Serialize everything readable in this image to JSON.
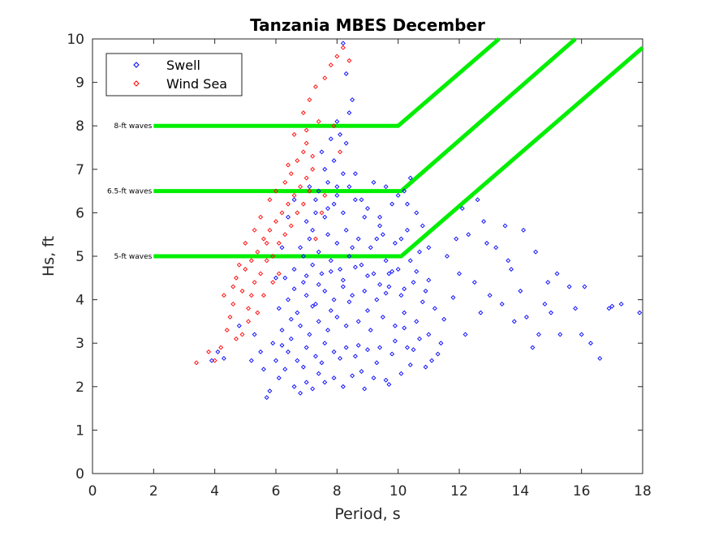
{
  "chart_data": {
    "type": "scatter",
    "title": "Tanzania MBES December",
    "xlabel": "Period, s",
    "ylabel": "Hs, ft",
    "xlim": [
      0,
      18
    ],
    "ylim": [
      0,
      10
    ],
    "xticks": [
      "0",
      "2",
      "4",
      "6",
      "8",
      "10",
      "12",
      "14",
      "16",
      "18"
    ],
    "yticks": [
      "0",
      "1",
      "2",
      "3",
      "4",
      "5",
      "6",
      "7",
      "8",
      "9",
      "10"
    ],
    "grid": false,
    "legend_position": "top-left",
    "series": [
      {
        "name": "Swell",
        "marker": "diamond",
        "color": "#0000ff",
        "points": [
          [
            5.7,
            1.75
          ],
          [
            5.8,
            1.9
          ],
          [
            6.1,
            2.2
          ],
          [
            6.3,
            2.4
          ],
          [
            6.6,
            2.0
          ],
          [
            6.8,
            1.85
          ],
          [
            7.0,
            2.1
          ],
          [
            7.2,
            1.95
          ],
          [
            7.4,
            2.3
          ],
          [
            7.6,
            2.1
          ],
          [
            7.9,
            2.2
          ],
          [
            8.2,
            2.0
          ],
          [
            8.5,
            2.25
          ],
          [
            8.8,
            2.35
          ],
          [
            9.2,
            2.2
          ],
          [
            9.6,
            2.15
          ],
          [
            10.1,
            2.3
          ],
          [
            10.4,
            2.5
          ],
          [
            6.0,
            2.6
          ],
          [
            6.4,
            2.8
          ],
          [
            6.7,
            2.6
          ],
          [
            7.0,
            2.9
          ],
          [
            7.3,
            2.7
          ],
          [
            7.6,
            3.0
          ],
          [
            7.9,
            2.8
          ],
          [
            8.3,
            2.9
          ],
          [
            8.6,
            2.7
          ],
          [
            9.0,
            2.85
          ],
          [
            9.4,
            2.9
          ],
          [
            9.8,
            2.75
          ],
          [
            10.3,
            2.9
          ],
          [
            10.7,
            3.1
          ],
          [
            11.0,
            3.2
          ],
          [
            5.9,
            3.0
          ],
          [
            6.2,
            3.3
          ],
          [
            6.5,
            3.1
          ],
          [
            6.8,
            3.4
          ],
          [
            7.1,
            3.2
          ],
          [
            7.4,
            3.5
          ],
          [
            7.7,
            3.3
          ],
          [
            8.0,
            3.6
          ],
          [
            8.3,
            3.4
          ],
          [
            8.7,
            3.5
          ],
          [
            9.1,
            3.3
          ],
          [
            9.5,
            3.6
          ],
          [
            9.9,
            3.4
          ],
          [
            10.2,
            3.7
          ],
          [
            10.6,
            3.5
          ],
          [
            11.2,
            3.8
          ],
          [
            6.1,
            3.8
          ],
          [
            6.4,
            4.0
          ],
          [
            6.7,
            3.7
          ],
          [
            7.0,
            4.1
          ],
          [
            7.3,
            3.9
          ],
          [
            7.6,
            4.2
          ],
          [
            7.9,
            4.0
          ],
          [
            8.2,
            4.3
          ],
          [
            8.5,
            4.1
          ],
          [
            8.9,
            4.2
          ],
          [
            9.3,
            4.0
          ],
          [
            9.7,
            4.3
          ],
          [
            10.1,
            4.1
          ],
          [
            10.5,
            4.4
          ],
          [
            10.9,
            4.2
          ],
          [
            6.3,
            4.5
          ],
          [
            6.6,
            4.7
          ],
          [
            6.9,
            4.4
          ],
          [
            7.2,
            4.8
          ],
          [
            7.5,
            4.6
          ],
          [
            7.8,
            4.9
          ],
          [
            8.1,
            4.7
          ],
          [
            8.4,
            5.0
          ],
          [
            8.8,
            4.8
          ],
          [
            9.2,
            4.6
          ],
          [
            9.6,
            4.9
          ],
          [
            10.0,
            4.7
          ],
          [
            10.4,
            4.9
          ],
          [
            6.8,
            5.2
          ],
          [
            7.1,
            5.4
          ],
          [
            7.4,
            5.1
          ],
          [
            7.7,
            5.5
          ],
          [
            8.0,
            5.3
          ],
          [
            8.3,
            5.6
          ],
          [
            8.7,
            5.4
          ],
          [
            9.1,
            5.2
          ],
          [
            9.5,
            5.5
          ],
          [
            9.9,
            5.3
          ],
          [
            10.3,
            5.6
          ],
          [
            7.0,
            5.8
          ],
          [
            7.3,
            6.0
          ],
          [
            7.6,
            5.9
          ],
          [
            7.9,
            6.2
          ],
          [
            8.2,
            6.0
          ],
          [
            8.6,
            6.3
          ],
          [
            9.0,
            6.1
          ],
          [
            9.4,
            5.9
          ],
          [
            9.8,
            6.2
          ],
          [
            10.2,
            6.5
          ],
          [
            7.4,
            6.5
          ],
          [
            7.7,
            6.7
          ],
          [
            8.0,
            6.4
          ],
          [
            8.4,
            6.6
          ],
          [
            8.8,
            6.3
          ],
          [
            10.4,
            6.8
          ],
          [
            7.6,
            7.0
          ],
          [
            7.9,
            7.2
          ],
          [
            8.2,
            6.9
          ],
          [
            8.3,
            7.6
          ],
          [
            8.1,
            7.8
          ],
          [
            8.0,
            8.1
          ],
          [
            8.4,
            8.3
          ],
          [
            8.5,
            8.6
          ],
          [
            8.3,
            9.2
          ],
          [
            8.2,
            9.9
          ],
          [
            6.2,
            2.95
          ],
          [
            6.5,
            3.55
          ],
          [
            6.9,
            2.45
          ],
          [
            7.2,
            3.85
          ],
          [
            7.5,
            2.55
          ],
          [
            7.8,
            3.75
          ],
          [
            8.1,
            2.65
          ],
          [
            8.4,
            3.95
          ],
          [
            8.7,
            2.95
          ],
          [
            9.0,
            3.75
          ],
          [
            9.3,
            2.55
          ],
          [
            9.6,
            4.15
          ],
          [
            9.9,
            3.05
          ],
          [
            10.2,
            3.35
          ],
          [
            10.5,
            2.85
          ],
          [
            10.8,
            3.95
          ],
          [
            6.6,
            4.25
          ],
          [
            7.0,
            4.55
          ],
          [
            7.4,
            4.35
          ],
          [
            7.8,
            4.65
          ],
          [
            8.2,
            4.45
          ],
          [
            8.6,
            4.75
          ],
          [
            9.0,
            4.55
          ],
          [
            9.4,
            4.35
          ],
          [
            9.8,
            4.65
          ],
          [
            10.2,
            4.25
          ],
          [
            10.6,
            4.65
          ],
          [
            11.0,
            4.45
          ],
          [
            11.3,
            2.75
          ],
          [
            11.5,
            3.55
          ],
          [
            11.8,
            4.05
          ],
          [
            12.0,
            4.6
          ],
          [
            12.2,
            3.2
          ],
          [
            12.5,
            4.4
          ],
          [
            12.7,
            3.7
          ],
          [
            13.0,
            4.1
          ],
          [
            13.2,
            5.2
          ],
          [
            13.4,
            3.9
          ],
          [
            13.6,
            4.9
          ],
          [
            13.8,
            3.5
          ],
          [
            14.0,
            4.2
          ],
          [
            14.2,
            3.6
          ],
          [
            14.4,
            2.9
          ],
          [
            14.6,
            3.2
          ],
          [
            14.8,
            3.9
          ],
          [
            15.0,
            3.7
          ],
          [
            15.3,
            3.2
          ],
          [
            15.6,
            4.3
          ],
          [
            15.8,
            3.8
          ],
          [
            16.0,
            3.2
          ],
          [
            16.3,
            3.0
          ],
          [
            16.6,
            2.65
          ],
          [
            17.0,
            3.85
          ],
          [
            17.3,
            3.9
          ],
          [
            17.9,
            3.7
          ],
          [
            12.3,
            5.5
          ],
          [
            12.8,
            5.8
          ],
          [
            13.5,
            5.7
          ],
          [
            14.1,
            5.6
          ],
          [
            14.5,
            5.1
          ],
          [
            15.2,
            4.6
          ],
          [
            16.1,
            4.3
          ],
          [
            16.9,
            3.8
          ],
          [
            12.1,
            6.1
          ],
          [
            12.9,
            5.3
          ],
          [
            13.7,
            4.7
          ],
          [
            14.9,
            4.4
          ],
          [
            11.6,
            5.0
          ],
          [
            11.9,
            5.4
          ],
          [
            12.6,
            6.3
          ],
          [
            11.4,
            3.0
          ],
          [
            11.1,
            2.6
          ],
          [
            10.9,
            2.45
          ],
          [
            9.7,
            2.05
          ],
          [
            8.9,
            1.95
          ],
          [
            5.6,
            2.4
          ],
          [
            5.5,
            2.8
          ],
          [
            5.3,
            3.2
          ],
          [
            4.8,
            3.4
          ],
          [
            4.3,
            2.65
          ],
          [
            4.1,
            2.8
          ],
          [
            3.9,
            2.6
          ],
          [
            5.2,
            2.6
          ],
          [
            6.0,
            4.5
          ],
          [
            6.2,
            5.2
          ],
          [
            6.4,
            5.9
          ],
          [
            6.6,
            6.3
          ],
          [
            7.1,
            6.6
          ],
          [
            7.3,
            6.3
          ],
          [
            8.6,
            6.9
          ],
          [
            9.2,
            6.7
          ],
          [
            9.6,
            6.6
          ],
          [
            10.0,
            6.4
          ],
          [
            10.3,
            6.2
          ],
          [
            10.6,
            6.0
          ],
          [
            10.8,
            5.7
          ],
          [
            11.0,
            5.2
          ],
          [
            10.7,
            5.1
          ],
          [
            10.1,
            5.4
          ],
          [
            9.4,
            5.7
          ],
          [
            7.5,
            7.4
          ],
          [
            7.8,
            7.7
          ],
          [
            8.0,
            6.6
          ],
          [
            7.7,
            6.1
          ],
          [
            7.2,
            5.6
          ],
          [
            6.9,
            5.0
          ],
          [
            8.9,
            5.9
          ],
          [
            9.3,
            5.4
          ],
          [
            9.7,
            4.6
          ],
          [
            8.5,
            5.2
          ]
        ]
      },
      {
        "name": "Wind Sea",
        "marker": "diamond",
        "color": "#ff0000",
        "points": [
          [
            3.4,
            2.55
          ],
          [
            3.8,
            2.8
          ],
          [
            4.2,
            2.9
          ],
          [
            4.4,
            3.3
          ],
          [
            4.6,
            3.9
          ],
          [
            4.7,
            4.5
          ],
          [
            4.9,
            4.2
          ],
          [
            5.0,
            4.7
          ],
          [
            5.1,
            3.8
          ],
          [
            5.2,
            4.9
          ],
          [
            5.3,
            4.4
          ],
          [
            5.4,
            5.1
          ],
          [
            5.5,
            4.6
          ],
          [
            5.6,
            5.4
          ],
          [
            5.7,
            4.9
          ],
          [
            5.8,
            5.6
          ],
          [
            5.9,
            5.0
          ],
          [
            6.0,
            5.8
          ],
          [
            6.1,
            5.3
          ],
          [
            6.2,
            6.0
          ],
          [
            6.3,
            5.5
          ],
          [
            6.4,
            6.2
          ],
          [
            6.5,
            5.7
          ],
          [
            6.6,
            6.4
          ],
          [
            6.7,
            6.0
          ],
          [
            6.8,
            6.6
          ],
          [
            6.9,
            6.2
          ],
          [
            7.0,
            6.8
          ],
          [
            7.1,
            6.5
          ],
          [
            7.2,
            7.0
          ],
          [
            6.5,
            6.9
          ],
          [
            6.7,
            7.2
          ],
          [
            6.9,
            7.4
          ],
          [
            7.0,
            7.6
          ],
          [
            6.6,
            7.8
          ],
          [
            6.4,
            7.1
          ],
          [
            6.3,
            6.7
          ],
          [
            5.8,
            6.3
          ],
          [
            5.5,
            5.9
          ],
          [
            5.3,
            5.6
          ],
          [
            5.0,
            5.3
          ],
          [
            4.8,
            4.8
          ],
          [
            4.6,
            4.3
          ],
          [
            4.5,
            3.6
          ],
          [
            4.9,
            3.2
          ],
          [
            5.1,
            3.5
          ],
          [
            5.4,
            3.7
          ],
          [
            5.6,
            4.1
          ],
          [
            5.9,
            4.4
          ],
          [
            6.1,
            4.6
          ],
          [
            7.3,
            5.4
          ],
          [
            7.5,
            6.0
          ],
          [
            7.2,
            7.3
          ],
          [
            7.0,
            7.9
          ],
          [
            7.6,
            6.4
          ],
          [
            5.2,
            4.1
          ],
          [
            4.7,
            3.1
          ],
          [
            4.3,
            4.1
          ],
          [
            5.7,
            5.3
          ],
          [
            6.0,
            6.5
          ],
          [
            7.4,
            8.1
          ],
          [
            7.8,
            9.4
          ],
          [
            8.0,
            9.6
          ],
          [
            7.6,
            9.1
          ],
          [
            8.2,
            9.8
          ],
          [
            8.4,
            9.5
          ],
          [
            7.3,
            8.9
          ],
          [
            6.9,
            8.3
          ],
          [
            7.1,
            8.6
          ],
          [
            7.9,
            8.0
          ],
          [
            8.1,
            7.4
          ],
          [
            4.0,
            2.6
          ]
        ]
      }
    ],
    "thresholds": [
      {
        "label": "8-ft waves",
        "points": [
          [
            2,
            8
          ],
          [
            10,
            8
          ],
          [
            13.3,
            10
          ]
        ]
      },
      {
        "label": "6.5-ft waves",
        "points": [
          [
            2,
            6.5
          ],
          [
            10.1,
            6.5
          ],
          [
            15.8,
            10
          ]
        ]
      },
      {
        "label": "5-ft waves",
        "points": [
          [
            2,
            5
          ],
          [
            10.1,
            5
          ],
          [
            18,
            9.8
          ]
        ]
      }
    ],
    "threshold_color": "#00ee00"
  }
}
